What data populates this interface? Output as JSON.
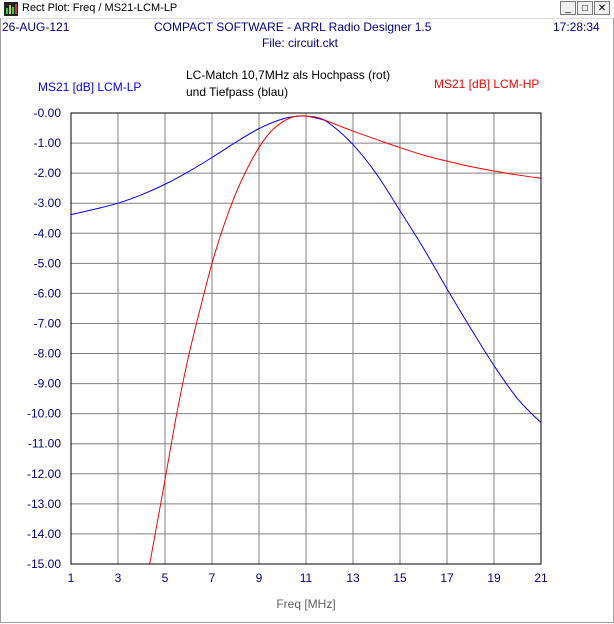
{
  "window": {
    "title": "Rect Plot: Freq / MS21-LCM-LP",
    "buttons": [
      "_",
      "□",
      "✕"
    ]
  },
  "header": {
    "date": "26-AUG-121",
    "app": "COMPACT SOFTWARE - ARRL Radio Designer 1.5",
    "file": "File: circuit.ckt",
    "time": "17:28:34"
  },
  "annotation": {
    "line1": "LC-Match 10,7MHz als Hochpass (rot)",
    "line2": "und Tiefpass (blau)"
  },
  "colors": {
    "lp": "#0000ff",
    "hp": "#ff0000",
    "header": "#00008b",
    "grid": "#808080",
    "axis_text": "#00008b"
  },
  "chart_data": {
    "type": "line",
    "xlabel": "Freq [MHz]",
    "ylabel": "",
    "xlim": [
      1,
      21
    ],
    "ylim": [
      -15,
      0
    ],
    "xticks": [
      1,
      3,
      5,
      7,
      9,
      11,
      13,
      15,
      17,
      19,
      21
    ],
    "yticks": [
      "-0.00",
      "-1.00",
      "-2.00",
      "-3.00",
      "-4.00",
      "-5.00",
      "-6.00",
      "-7.00",
      "-8.00",
      "-9.00",
      "-10.00",
      "-11.00",
      "-12.00",
      "-13.00",
      "-14.00",
      "-15.00"
    ],
    "grid": true,
    "series": [
      {
        "name": "MS21 [dB] LCM-LP",
        "color": "#0000ff",
        "x": [
          1,
          2,
          3,
          4,
          5,
          6,
          7,
          8,
          9,
          10,
          10.8,
          11.5,
          12,
          13,
          14,
          15,
          16,
          17,
          18,
          19,
          20,
          21
        ],
        "y": [
          -3.38,
          -3.2,
          -3.0,
          -2.72,
          -2.37,
          -1.95,
          -1.48,
          -0.98,
          -0.52,
          -0.2,
          -0.1,
          -0.18,
          -0.35,
          -1.05,
          -2.03,
          -3.25,
          -4.5,
          -5.85,
          -7.15,
          -8.4,
          -9.5,
          -10.3
        ]
      },
      {
        "name": "MS21 [dB] LCM-HP",
        "color": "#ff0000",
        "x": [
          4.35,
          5,
          5.5,
          6,
          6.5,
          7,
          7.5,
          8,
          8.5,
          9,
          9.5,
          10,
          10.5,
          11,
          11.5,
          12,
          13,
          14,
          15,
          16,
          17,
          18,
          19,
          20,
          21
        ],
        "y": [
          -15.0,
          -12.2,
          -10.0,
          -8.1,
          -6.5,
          -5.0,
          -3.75,
          -2.7,
          -1.85,
          -1.15,
          -0.62,
          -0.3,
          -0.12,
          -0.1,
          -0.15,
          -0.3,
          -0.6,
          -0.88,
          -1.15,
          -1.4,
          -1.6,
          -1.78,
          -1.93,
          -2.06,
          -2.17
        ]
      }
    ]
  }
}
